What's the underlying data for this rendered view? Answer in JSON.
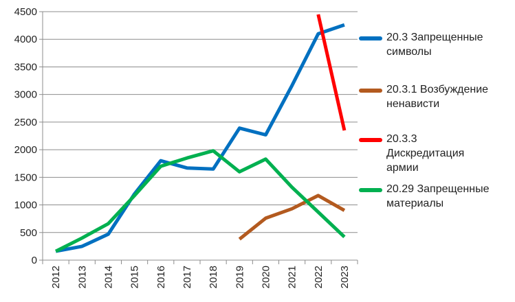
{
  "chart_data": {
    "type": "line",
    "categories": [
      "2012",
      "2013",
      "2014",
      "2015",
      "2016",
      "2017",
      "2018",
      "2019",
      "2020",
      "2021",
      "2022",
      "2023"
    ],
    "ylim": [
      0,
      4500
    ],
    "yticks": [
      0,
      500,
      1000,
      1500,
      2000,
      2500,
      3000,
      3500,
      4000,
      4500
    ],
    "grid": true,
    "legend_position": "right",
    "series": [
      {
        "name": "20.3 Запрещенные символы",
        "color": "#0070C0",
        "values": [
          160,
          250,
          470,
          1200,
          1800,
          1670,
          1650,
          2390,
          2270,
          3160,
          4100,
          4260
        ]
      },
      {
        "name": "20.3.1 Возбуждение ненависти",
        "color": "#B35A1F",
        "values": [
          null,
          null,
          null,
          null,
          null,
          null,
          null,
          380,
          760,
          930,
          1170,
          900
        ]
      },
      {
        "name": "20.3.3 Дискредитация армии",
        "color": "#FF0000",
        "values": [
          null,
          null,
          null,
          null,
          null,
          null,
          null,
          null,
          null,
          null,
          4450,
          2350
        ]
      },
      {
        "name": "20.29 Запрещенные материалы",
        "color": "#00B050",
        "values": [
          160,
          400,
          660,
          1170,
          1700,
          1850,
          1980,
          1600,
          1830,
          1320,
          870,
          420
        ]
      }
    ]
  }
}
